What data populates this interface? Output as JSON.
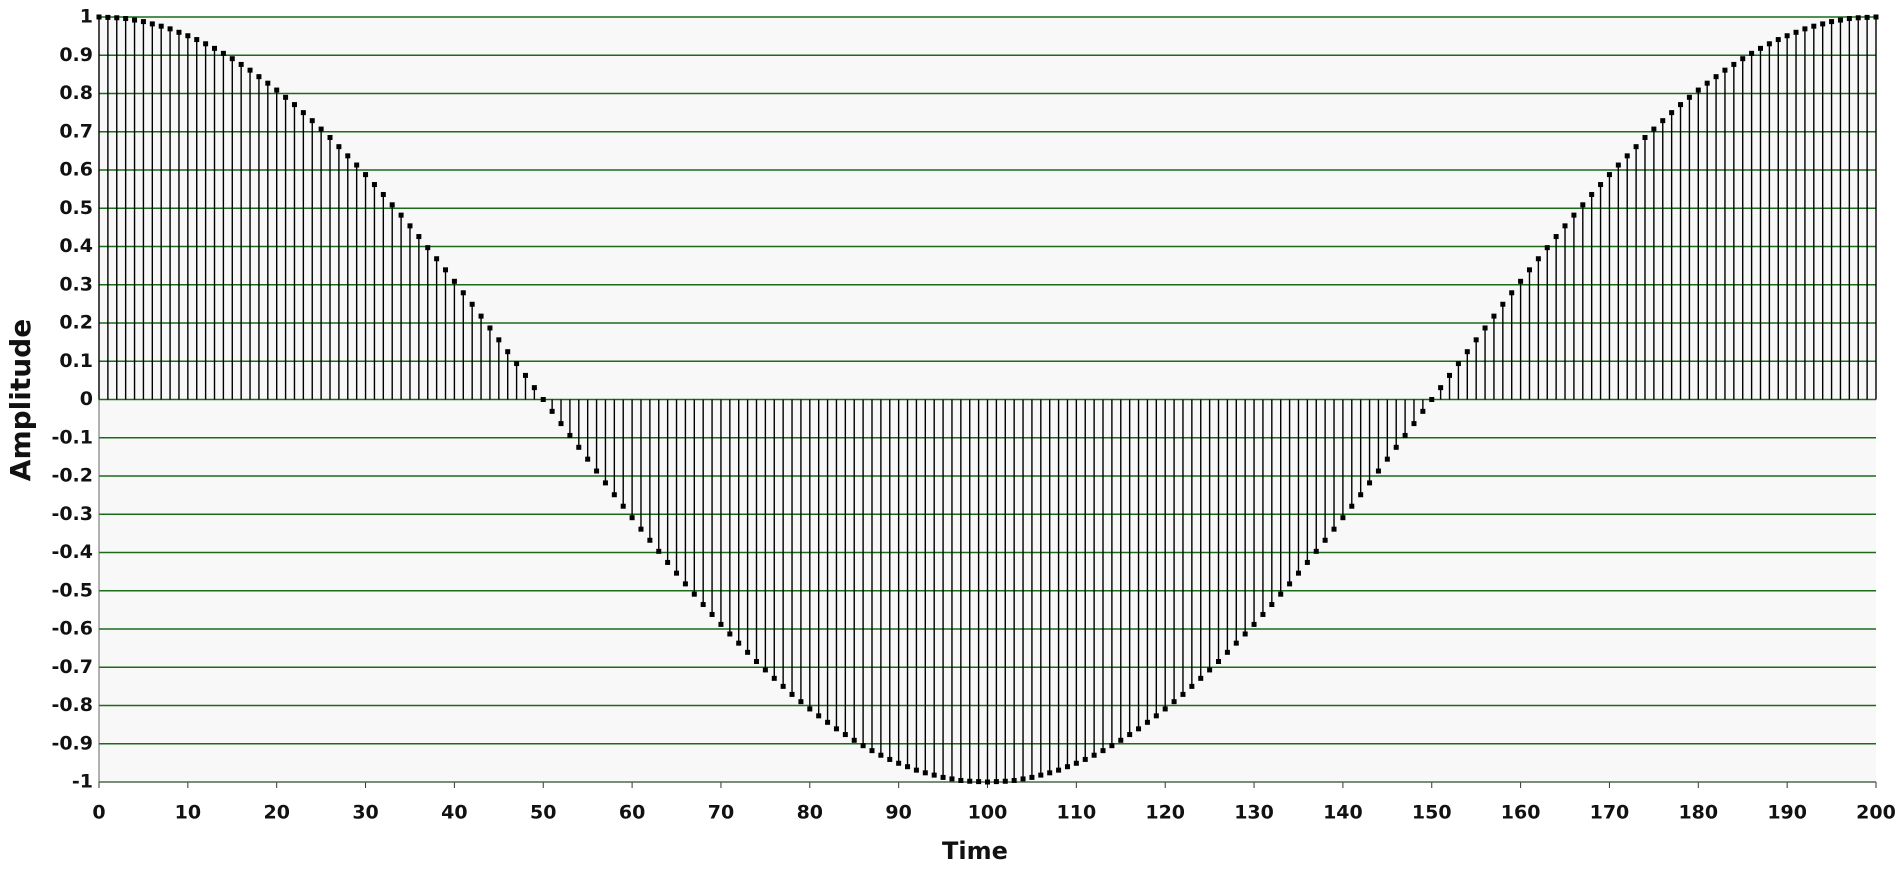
{
  "chart_data": {
    "type": "stem",
    "x_label": "Time",
    "y_label": "Amplitude",
    "x": [
      0,
      1,
      2,
      3,
      4,
      5,
      6,
      7,
      8,
      9,
      10,
      11,
      12,
      13,
      14,
      15,
      16,
      17,
      18,
      19,
      20,
      21,
      22,
      23,
      24,
      25,
      26,
      27,
      28,
      29,
      30,
      31,
      32,
      33,
      34,
      35,
      36,
      37,
      38,
      39,
      40,
      41,
      42,
      43,
      44,
      45,
      46,
      47,
      48,
      49,
      50,
      51,
      52,
      53,
      54,
      55,
      56,
      57,
      58,
      59,
      60,
      61,
      62,
      63,
      64,
      65,
      66,
      67,
      68,
      69,
      70,
      71,
      72,
      73,
      74,
      75,
      76,
      77,
      78,
      79,
      80,
      81,
      82,
      83,
      84,
      85,
      86,
      87,
      88,
      89,
      90,
      91,
      92,
      93,
      94,
      95,
      96,
      97,
      98,
      99,
      100,
      101,
      102,
      103,
      104,
      105,
      106,
      107,
      108,
      109,
      110,
      111,
      112,
      113,
      114,
      115,
      116,
      117,
      118,
      119,
      120,
      121,
      122,
      123,
      124,
      125,
      126,
      127,
      128,
      129,
      130,
      131,
      132,
      133,
      134,
      135,
      136,
      137,
      138,
      139,
      140,
      141,
      142,
      143,
      144,
      145,
      146,
      147,
      148,
      149,
      150,
      151,
      152,
      153,
      154,
      155,
      156,
      157,
      158,
      159,
      160,
      161,
      162,
      163,
      164,
      165,
      166,
      167,
      168,
      169,
      170,
      171,
      172,
      173,
      174,
      175,
      176,
      177,
      178,
      179,
      180,
      181,
      182,
      183,
      184,
      185,
      186,
      187,
      188,
      189,
      190,
      191,
      192,
      193,
      194,
      195,
      196,
      197,
      198,
      199,
      200
    ],
    "values": [
      1,
      0.999,
      0.998,
      0.996,
      0.992,
      0.988,
      0.982,
      0.976,
      0.969,
      0.96,
      0.951,
      0.941,
      0.93,
      0.918,
      0.905,
      0.891,
      0.876,
      0.861,
      0.844,
      0.827,
      0.809,
      0.79,
      0.771,
      0.75,
      0.729,
      0.707,
      0.685,
      0.661,
      0.637,
      0.613,
      0.588,
      0.562,
      0.536,
      0.509,
      0.482,
      0.454,
      0.426,
      0.397,
      0.368,
      0.339,
      0.309,
      0.279,
      0.249,
      0.218,
      0.187,
      0.156,
      0.125,
      0.094,
      0.063,
      0.031,
      0,
      -0.031,
      -0.063,
      -0.094,
      -0.125,
      -0.156,
      -0.187,
      -0.218,
      -0.249,
      -0.279,
      -0.309,
      -0.339,
      -0.368,
      -0.397,
      -0.426,
      -0.454,
      -0.482,
      -0.509,
      -0.536,
      -0.562,
      -0.588,
      -0.613,
      -0.637,
      -0.661,
      -0.685,
      -0.707,
      -0.729,
      -0.75,
      -0.771,
      -0.79,
      -0.809,
      -0.827,
      -0.844,
      -0.861,
      -0.876,
      -0.891,
      -0.905,
      -0.918,
      -0.93,
      -0.941,
      -0.951,
      -0.96,
      -0.969,
      -0.976,
      -0.982,
      -0.988,
      -0.992,
      -0.996,
      -0.998,
      -0.999,
      -1,
      -0.999,
      -0.998,
      -0.996,
      -0.992,
      -0.988,
      -0.982,
      -0.976,
      -0.969,
      -0.96,
      -0.951,
      -0.941,
      -0.93,
      -0.918,
      -0.905,
      -0.891,
      -0.876,
      -0.861,
      -0.844,
      -0.827,
      -0.809,
      -0.79,
      -0.771,
      -0.75,
      -0.729,
      -0.707,
      -0.685,
      -0.661,
      -0.637,
      -0.613,
      -0.588,
      -0.562,
      -0.536,
      -0.509,
      -0.482,
      -0.454,
      -0.426,
      -0.397,
      -0.368,
      -0.339,
      -0.309,
      -0.279,
      -0.249,
      -0.218,
      -0.187,
      -0.156,
      -0.125,
      -0.094,
      -0.063,
      -0.031,
      0,
      0.031,
      0.063,
      0.094,
      0.125,
      0.156,
      0.187,
      0.218,
      0.249,
      0.279,
      0.309,
      0.339,
      0.368,
      0.397,
      0.426,
      0.454,
      0.482,
      0.509,
      0.536,
      0.562,
      0.588,
      0.613,
      0.637,
      0.661,
      0.685,
      0.707,
      0.729,
      0.75,
      0.771,
      0.79,
      0.809,
      0.827,
      0.844,
      0.861,
      0.876,
      0.891,
      0.905,
      0.918,
      0.93,
      0.941,
      0.951,
      0.96,
      0.969,
      0.976,
      0.982,
      0.988,
      0.992,
      0.996,
      0.998,
      0.999,
      1
    ],
    "color": "#000000",
    "grid": true,
    "grid_color": "#1a6b1a",
    "xlim": [
      0,
      200
    ],
    "xticks": [
      0,
      10,
      20,
      30,
      40,
      50,
      60,
      70,
      80,
      90,
      100,
      110,
      120,
      130,
      140,
      150,
      160,
      170,
      180,
      190,
      200
    ],
    "ylim": [
      -1,
      1
    ],
    "yticks": [
      -1,
      -0.9,
      -0.8,
      -0.7,
      -0.6,
      -0.5,
      -0.4,
      -0.3,
      -0.2,
      -0.1,
      0,
      0.1,
      0.2,
      0.3,
      0.4,
      0.5,
      0.6,
      0.7,
      0.8,
      0.9,
      1
    ]
  }
}
